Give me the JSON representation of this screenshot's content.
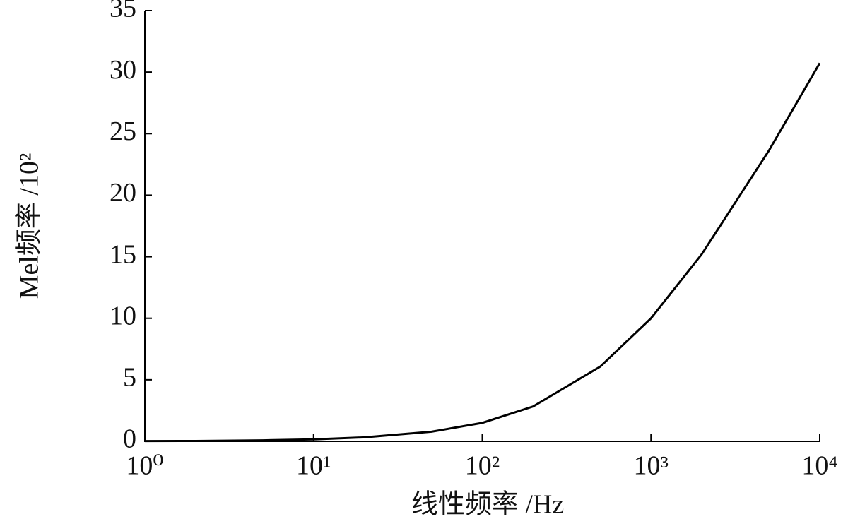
{
  "chart_data": {
    "type": "line",
    "x_label": "线性频率 /Hz",
    "y_label": "Mel频率 /10²",
    "x": [
      1,
      2,
      5,
      10,
      20,
      50,
      100,
      200,
      500,
      1000,
      2000,
      5000,
      10000
    ],
    "series": [
      {
        "color": "#000000",
        "values": [
          0.02,
          0.03,
          0.08,
          0.16,
          0.32,
          0.78,
          1.5,
          2.83,
          6.07,
          10.0,
          15.21,
          23.63,
          30.73
        ]
      }
    ],
    "xlim": [
      1,
      10000
    ],
    "x_log": true,
    "xticks": [
      {
        "value": 1,
        "label": "10⁰"
      },
      {
        "value": 10,
        "label": "10¹"
      },
      {
        "value": 100,
        "label": "10²"
      },
      {
        "value": 1000,
        "label": "10³"
      },
      {
        "value": 10000,
        "label": "10⁴"
      }
    ],
    "ylim": [
      0,
      35
    ],
    "yticks": [
      0,
      5,
      10,
      15,
      20,
      25,
      30,
      35
    ],
    "grid": false
  }
}
